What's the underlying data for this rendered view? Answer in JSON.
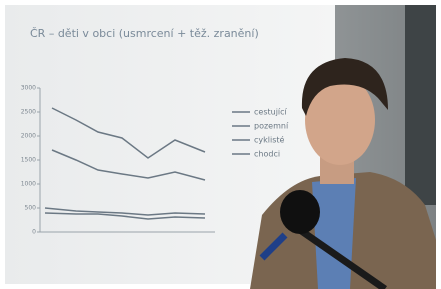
{
  "slide": {
    "title": "ČR – děti v obci (usmrcení + těž. zranění)",
    "yticks": [
      0,
      500,
      1000,
      1500,
      2000,
      2500,
      3000
    ],
    "legend": [
      "cestující",
      "pozemní",
      "cyklisté",
      "chodci"
    ]
  }
}
